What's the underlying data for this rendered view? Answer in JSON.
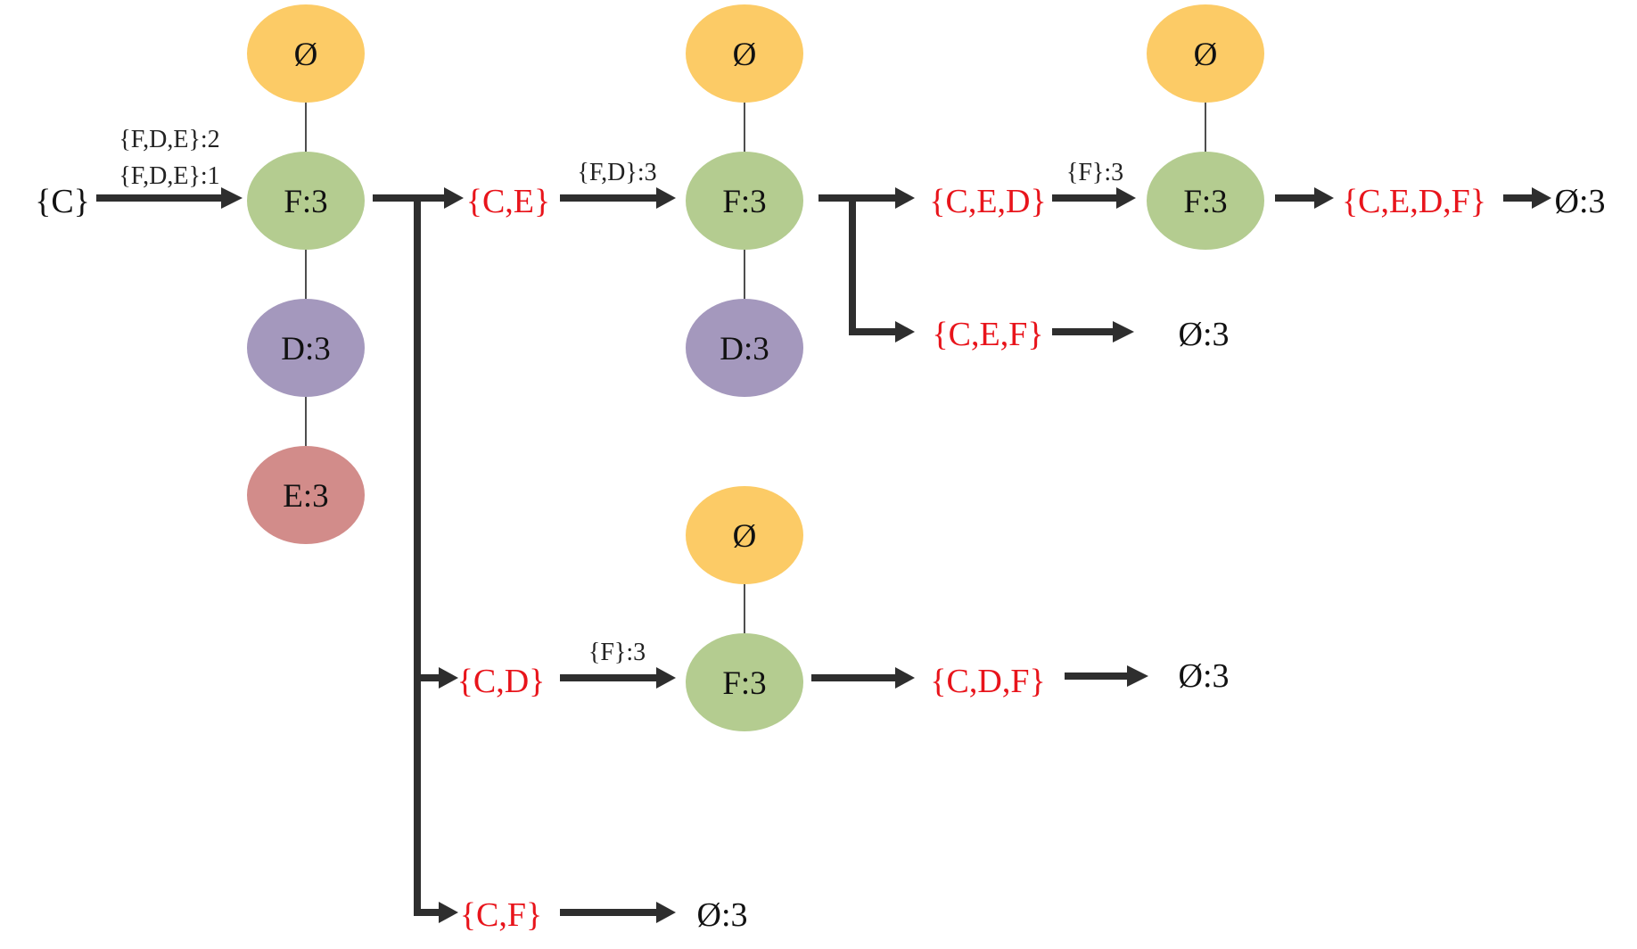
{
  "colors": {
    "empty_node": "#fccb66",
    "f_node": "#b4cc90",
    "d_node": "#a498bd",
    "e_node": "#d28c8a",
    "set_highlight": "#e8141b",
    "arrow": "#2e2e2e"
  },
  "root": {
    "label": "{C}"
  },
  "tree1": {
    "empty": "Ø",
    "f": "F:3",
    "d": "D:3",
    "e": "E:3",
    "in_label_1": "{F,D,E}:2",
    "in_label_2": "{F,D,E}:1"
  },
  "sets": {
    "ce": "{C,E}",
    "cd": "{C,D}",
    "cf": "{C,F}",
    "ced": "{C,E,D}",
    "cef": "{C,E,F}",
    "cdf": "{C,D,F}",
    "cedf": "{C,E,D,F}"
  },
  "tree2": {
    "empty": "Ø",
    "f": "F:3",
    "d": "D:3",
    "in_label": "{F,D}:3"
  },
  "tree3": {
    "empty": "Ø",
    "f": "F:3",
    "in_label": "{F}:3"
  },
  "tree4": {
    "empty": "Ø",
    "f": "F:3",
    "in_label": "{F}:3"
  },
  "results": {
    "cedf": "Ø:3",
    "cef": "Ø:3",
    "cdf": "Ø:3",
    "cf": "Ø:3"
  }
}
